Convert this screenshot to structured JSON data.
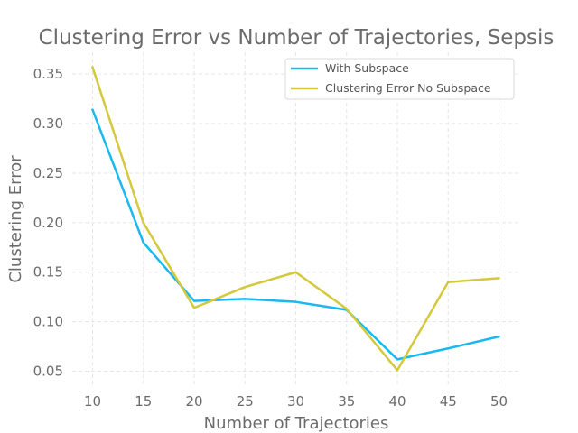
{
  "chart_data": {
    "type": "line",
    "title": "Clustering Error vs Number of Trajectories, Sepsis",
    "xlabel": "Number of Trajectories",
    "ylabel": "Clustering Error",
    "x": [
      10,
      15,
      20,
      25,
      30,
      35,
      40,
      45,
      50
    ],
    "xlim": [
      8,
      52
    ],
    "ylim": [
      0.035,
      0.372
    ],
    "xticks": [
      10,
      15,
      20,
      25,
      30,
      35,
      40,
      45,
      50
    ],
    "yticks": [
      0.05,
      0.1,
      0.15,
      0.2,
      0.25,
      0.3,
      0.35
    ],
    "ytick_labels": [
      "0.05",
      "0.10",
      "0.15",
      "0.20",
      "0.25",
      "0.30",
      "0.35"
    ],
    "grid": true,
    "legend_position": "top-right",
    "series": [
      {
        "name": "With Subspace",
        "color": "#1ab8f0",
        "values": [
          0.314,
          0.18,
          0.121,
          0.123,
          0.12,
          0.112,
          0.062,
          0.073,
          0.085
        ]
      },
      {
        "name": "Clustering Error No Subspace",
        "color": "#d4c83c",
        "values": [
          0.357,
          0.2,
          0.114,
          0.135,
          0.15,
          0.113,
          0.051,
          0.14,
          0.144
        ]
      }
    ]
  }
}
